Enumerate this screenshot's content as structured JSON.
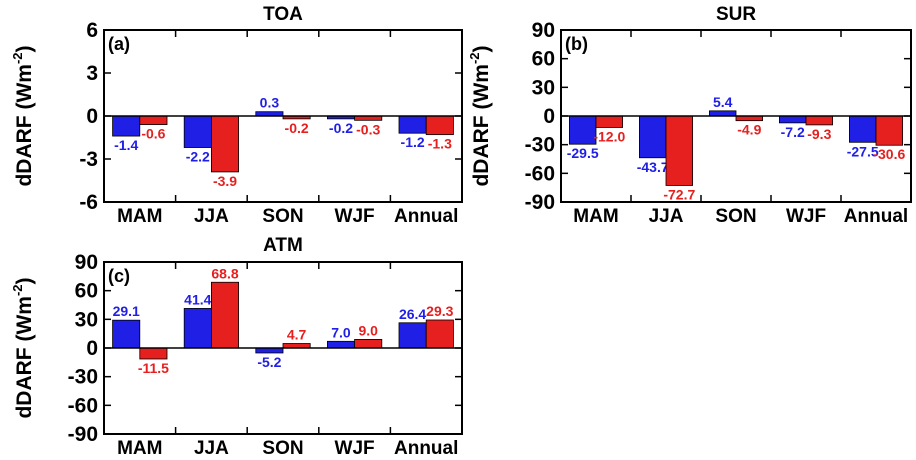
{
  "chart_data": [
    {
      "type": "bar",
      "title": "TOA",
      "panel": "(a)",
      "ylabel": "dDARF (Wm",
      "ylabel_sup": "-2",
      "ylabel_close": ")",
      "ylim": [
        -6,
        6
      ],
      "yticks": [
        -6,
        -3,
        0,
        3,
        6
      ],
      "categories": [
        "MAM",
        "JJA",
        "SON",
        "WJF",
        "Annual"
      ],
      "series": [
        {
          "color": "#1f1fe6",
          "values": [
            -1.4,
            -2.2,
            0.3,
            -0.2,
            -1.2
          ]
        },
        {
          "color": "#e61f1f",
          "values": [
            -0.6,
            -3.9,
            -0.2,
            -0.3,
            -1.3
          ]
        }
      ]
    },
    {
      "type": "bar",
      "title": "SUR",
      "panel": "(b)",
      "ylabel": "dDARF (Wm",
      "ylabel_sup": "-2",
      "ylabel_close": ")",
      "ylim": [
        -90,
        90
      ],
      "yticks": [
        -90,
        -60,
        -30,
        0,
        30,
        60,
        90
      ],
      "categories": [
        "MAM",
        "JJA",
        "SON",
        "WJF",
        "Annual"
      ],
      "series": [
        {
          "color": "#1f1fe6",
          "values": [
            -29.5,
            -43.7,
            5.4,
            -7.2,
            -27.5
          ]
        },
        {
          "color": "#e61f1f",
          "values": [
            -12.0,
            -72.7,
            -4.9,
            -9.3,
            -30.6
          ]
        }
      ]
    },
    {
      "type": "bar",
      "title": "ATM",
      "panel": "(c)",
      "ylabel": "dDARF (Wm",
      "ylabel_sup": "-2",
      "ylabel_close": ")",
      "ylim": [
        -90,
        90
      ],
      "yticks": [
        -90,
        -60,
        -30,
        0,
        30,
        60,
        90
      ],
      "categories": [
        "MAM",
        "JJA",
        "SON",
        "WJF",
        "Annual"
      ],
      "series": [
        {
          "color": "#1f1fe6",
          "values": [
            29.1,
            41.4,
            -5.2,
            7.0,
            26.4
          ]
        },
        {
          "color": "#e61f1f",
          "values": [
            -11.5,
            68.8,
            4.7,
            9.0,
            29.3
          ]
        }
      ]
    }
  ]
}
